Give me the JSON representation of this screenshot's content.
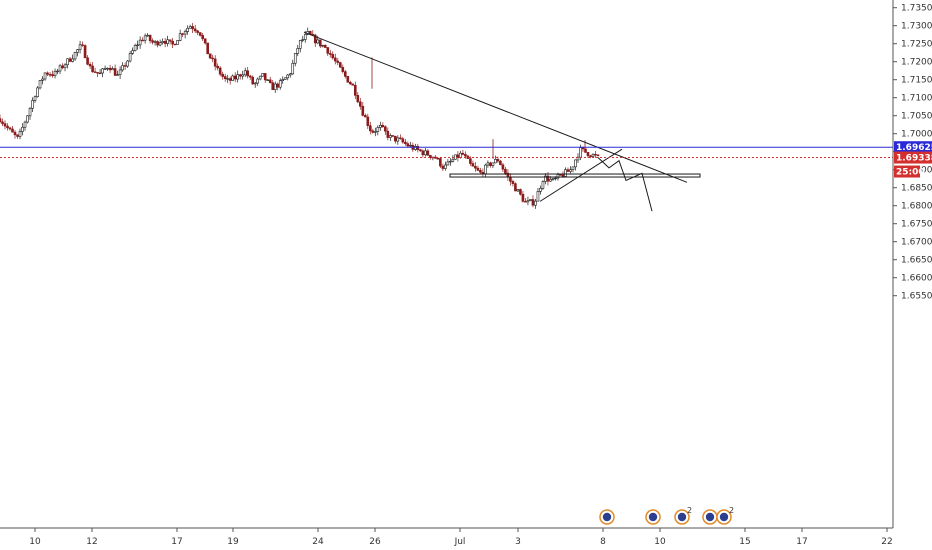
{
  "chart_data": {
    "type": "line",
    "title": "",
    "xlabel": "",
    "ylabel": "",
    "ylim": [
      1.6525,
      1.7375
    ],
    "y_ticks": [
      "1.73500",
      "1.73000",
      "1.72500",
      "1.72000",
      "1.71500",
      "1.71000",
      "1.70500",
      "1.70000",
      "1.69500",
      "1.69000",
      "1.68500",
      "1.68000",
      "1.67500",
      "1.67000",
      "1.66500",
      "1.66000",
      "1.65500"
    ],
    "x_ticks": [
      "10",
      "12",
      "17",
      "19",
      "24",
      "26",
      "Jul",
      "3",
      "8",
      "10",
      "15",
      "17",
      "22"
    ],
    "price": [
      1.7042,
      1.701,
      1.6985,
      1.705,
      1.712,
      1.717,
      1.7165,
      1.719,
      1.7215,
      1.7245,
      1.718,
      1.7165,
      1.719,
      1.716,
      1.72,
      1.7245,
      1.7272,
      1.725,
      1.7262,
      1.7245,
      1.728,
      1.73,
      1.7285,
      1.722,
      1.7178,
      1.7145,
      1.7155,
      1.7175,
      1.7135,
      1.716,
      1.7128,
      1.714,
      1.7168,
      1.725,
      1.7278,
      1.7255,
      1.7238,
      1.72,
      1.7162,
      1.713,
      1.7062,
      1.7005,
      1.7018,
      1.699,
      1.6982,
      1.6968,
      1.6955,
      1.6945,
      1.6935,
      1.6905,
      1.6928,
      1.6945,
      1.691,
      1.689,
      1.6915,
      1.6928,
      1.688,
      1.6845,
      1.6808,
      1.681,
      1.688,
      1.6868,
      1.6885,
      1.69,
      1.6955,
      1.6945,
      1.6934
    ],
    "trendline_down": {
      "from": {
        "day": "Jun 22",
        "y": 1.7282
      },
      "to": {
        "day": "Jul 10",
        "y": 1.6865
      }
    },
    "support_line_up": {
      "from": {
        "day": "Jul 4",
        "y": 1.681
      },
      "to": {
        "day": "Jul 8",
        "y": 1.6955
      }
    },
    "support_zone": [
      1.6882,
      1.6888
    ],
    "projection": [
      1.6934,
      1.6905,
      1.6925,
      1.687,
      1.689,
      1.6785
    ],
    "horizontal_lines": [
      {
        "name": "blue-level",
        "value": 1.69625,
        "color": "#2a2ad8"
      },
      {
        "name": "current-price",
        "value": 1.69338,
        "color": "#d32f2f",
        "dashed": true
      }
    ],
    "price_tags": [
      {
        "label": "1.69625",
        "color": "#2a2ad8"
      },
      {
        "label": "1.69338",
        "color": "#d32f2f"
      },
      {
        "label": "25:00",
        "color": "#d32f2f"
      }
    ],
    "event_badges": [
      "",
      "",
      "2",
      "",
      "2"
    ],
    "colors": {
      "up": "#1a1a1a",
      "down": "#8b1a1a",
      "line": "#1a1a1a",
      "axis": "#555555"
    }
  }
}
